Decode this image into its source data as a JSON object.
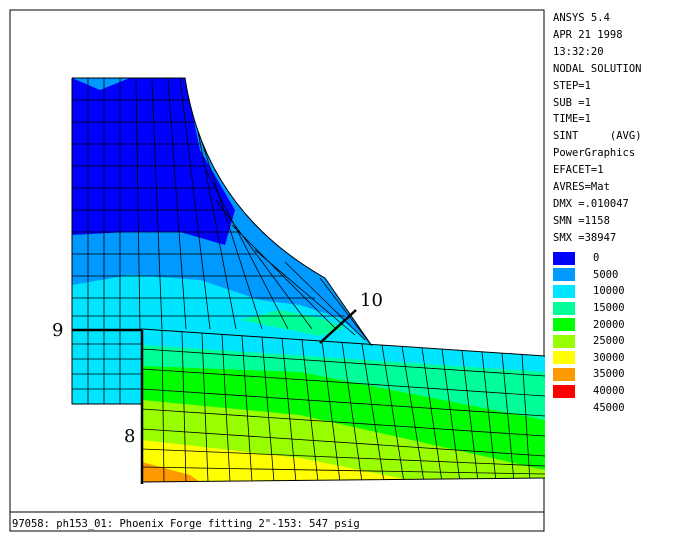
{
  "info": {
    "software": "ANSYS 5.4",
    "date": "APR 21 1998",
    "time": "13:32:20",
    "solution": "NODAL SOLUTION",
    "step": "STEP=1",
    "sub": "SUB =1",
    "time_value": "TIME=1",
    "quantity": "SINT",
    "averaging": "(AVG)",
    "graphics": "PowerGraphics",
    "efacet": "EFACET=1",
    "avres": "AVRES=Mat",
    "dmx": "DMX =.010047",
    "smn": "SMN =1158",
    "smx": "SMX =38947"
  },
  "legend": [
    {
      "label": "0",
      "color": "#0000ff"
    },
    {
      "label": "5000",
      "color": "#0099ff"
    },
    {
      "label": "10000",
      "color": "#00e5ff"
    },
    {
      "label": "15000",
      "color": "#00ff99"
    },
    {
      "label": "20000",
      "color": "#00ff00"
    },
    {
      "label": "25000",
      "color": "#99ff00"
    },
    {
      "label": "30000",
      "color": "#ffff00"
    },
    {
      "label": "35000",
      "color": "#ff9900"
    },
    {
      "label": "40000",
      "color": "#ff0000"
    },
    {
      "label": "45000",
      "color": "#ffffff"
    }
  ],
  "paths": {
    "label_8": "8",
    "label_9": "9",
    "label_10": "10"
  },
  "caption": "97058: ph153_01: Phoenix Forge fitting 2\"-153: 547 psig"
}
